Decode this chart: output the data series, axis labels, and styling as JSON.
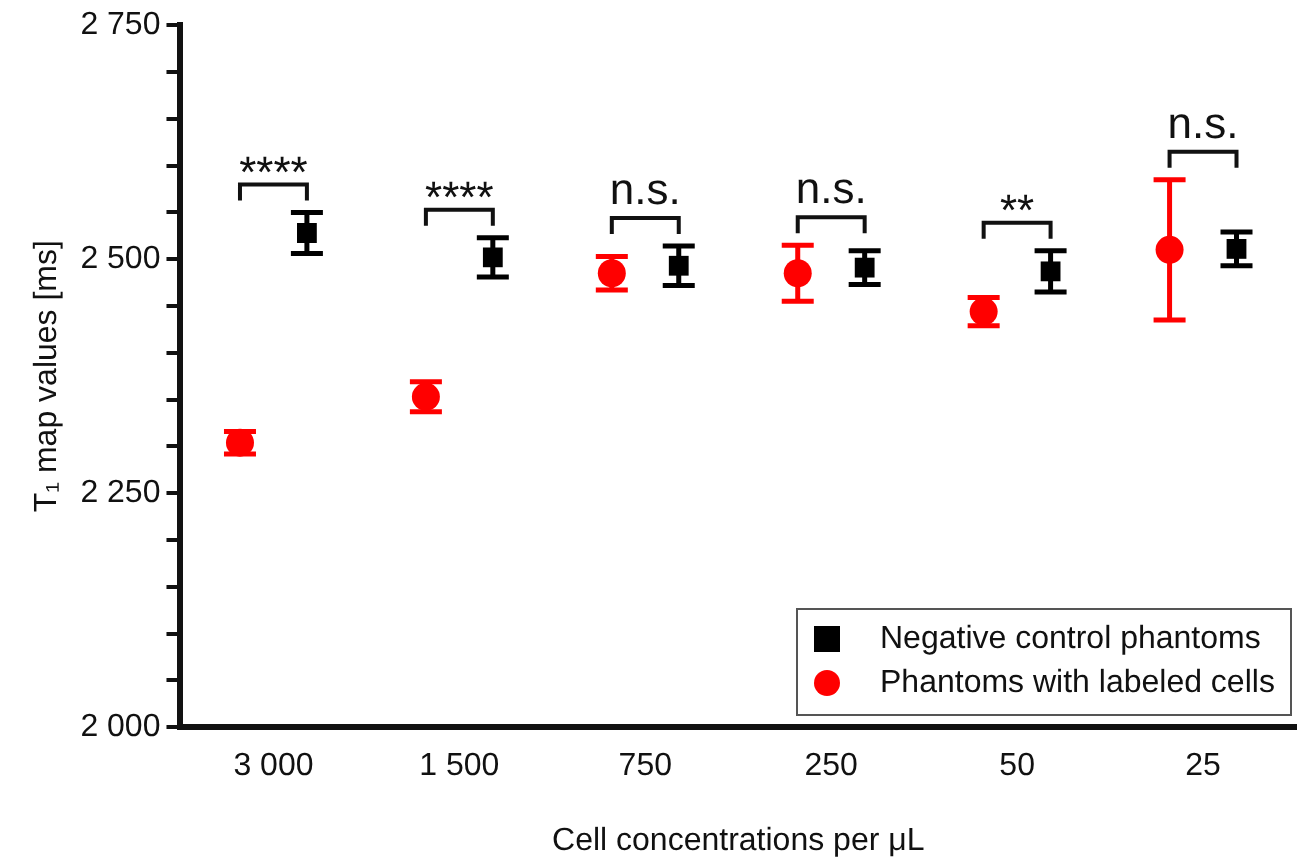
{
  "chart_data": {
    "type": "scatter",
    "xlabel": "Cell concentrations per μL",
    "ylabel": "T₁ map values [ms]",
    "categories": [
      "3 000",
      "1 500",
      "750",
      "250",
      "50",
      "25"
    ],
    "series": [
      {
        "name": "Negative control phantoms",
        "color": "#000000",
        "marker": "square",
        "values": [
          2528,
          2502,
          2493,
          2491,
          2487,
          2511
        ],
        "errors": [
          22,
          21,
          21,
          18,
          22,
          18
        ]
      },
      {
        "name": "Phantoms with labeled cells",
        "color": "#ff0000",
        "marker": "circle",
        "values": [
          2304,
          2353,
          2485,
          2485,
          2444,
          2510
        ],
        "errors": [
          12,
          16,
          18,
          30,
          15,
          75
        ]
      }
    ],
    "ylim": [
      2000,
      2750
    ],
    "yticks": [
      {
        "value": 2000,
        "label": "2 000"
      },
      {
        "value": 2050,
        "label": null
      },
      {
        "value": 2100,
        "label": null
      },
      {
        "value": 2150,
        "label": null
      },
      {
        "value": 2200,
        "label": null
      },
      {
        "value": 2250,
        "label": "2 250"
      },
      {
        "value": 2300,
        "label": null
      },
      {
        "value": 2350,
        "label": null
      },
      {
        "value": 2400,
        "label": null
      },
      {
        "value": 2450,
        "label": null
      },
      {
        "value": 2500,
        "label": "2 500"
      },
      {
        "value": 2550,
        "label": null
      },
      {
        "value": 2600,
        "label": null
      },
      {
        "value": 2650,
        "label": null
      },
      {
        "value": 2700,
        "label": null
      },
      {
        "value": 2750,
        "label": "2 750"
      }
    ],
    "annotations": [
      "****",
      "****",
      "n.s.",
      "n.s.",
      "**",
      "n.s."
    ],
    "grid": false,
    "legend": "bottom right"
  }
}
